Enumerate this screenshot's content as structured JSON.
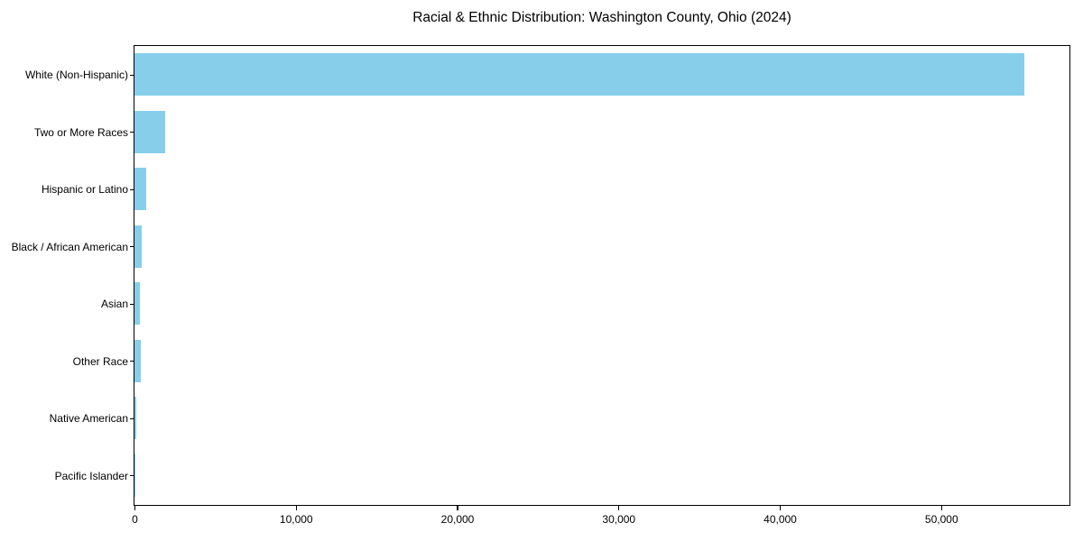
{
  "chart_data": {
    "type": "bar",
    "orientation": "horizontal",
    "title": "Racial & Ethnic Distribution: Washington County, Ohio (2024)",
    "categories": [
      "White (Non-Hispanic)",
      "Two or More Races",
      "Hispanic or Latino",
      "Black / African American",
      "Asian",
      "Other Race",
      "Native American",
      "Pacific Islander"
    ],
    "values": [
      55170,
      1890,
      740,
      450,
      355,
      410,
      85,
      25
    ],
    "xlabel": "",
    "ylabel": "",
    "xlim": [
      0,
      57900
    ],
    "x_tick_values": [
      0,
      10000,
      20000,
      30000,
      40000,
      50000
    ],
    "x_tick_labels": [
      "0",
      "10,000",
      "20,000",
      "30,000",
      "40,000",
      "50,000"
    ],
    "bar_color": "#87CEEB",
    "text_color": "#000000",
    "grid": false,
    "legend": "none"
  }
}
